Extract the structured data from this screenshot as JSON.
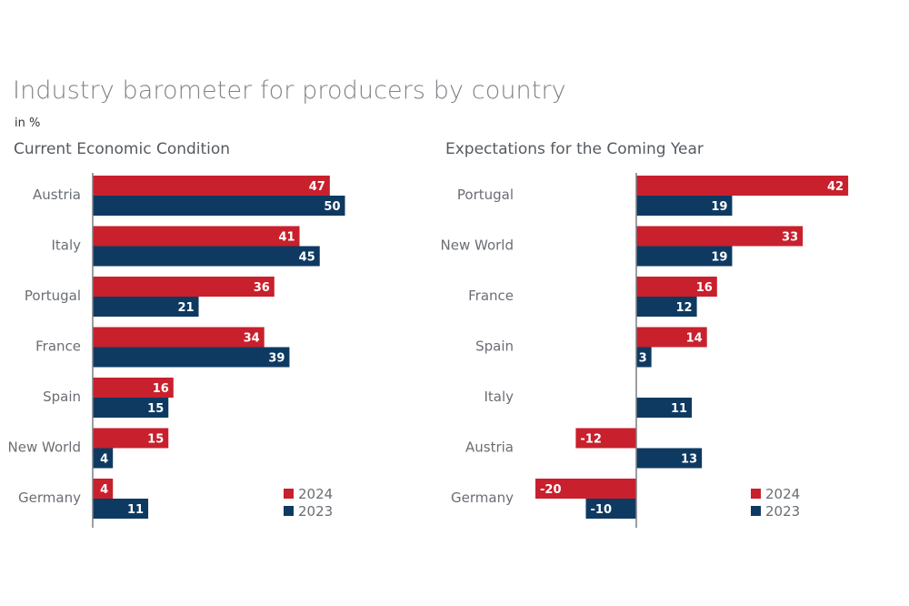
{
  "title": "Industry barometer for producers by country",
  "unit": "in %",
  "colors": {
    "s2024": "#c8202d",
    "s2023": "#0e3a62"
  },
  "chart_data": [
    {
      "type": "bar",
      "orientation": "horizontal",
      "title": "Current Economic Condition",
      "categories": [
        "Austria",
        "Italy",
        "Portugal",
        "France",
        "Spain",
        "New World",
        "Germany"
      ],
      "series": [
        {
          "name": "2024",
          "values": [
            47,
            41,
            36,
            34,
            16,
            15,
            4
          ]
        },
        {
          "name": "2023",
          "values": [
            50,
            45,
            21,
            39,
            15,
            4,
            11
          ]
        }
      ],
      "legend": "bottom-right"
    },
    {
      "type": "bar",
      "orientation": "horizontal",
      "title": "Expectations for the Coming Year",
      "categories": [
        "Portugal",
        "New World",
        "France",
        "Spain",
        "Italy",
        "Austria",
        "Germany"
      ],
      "series": [
        {
          "name": "2024",
          "values": [
            42,
            33,
            16,
            14,
            null,
            -12,
            -20
          ]
        },
        {
          "name": "2023",
          "values": [
            19,
            19,
            12,
            3,
            11,
            13,
            -10
          ]
        }
      ],
      "legend": "bottom-right"
    }
  ]
}
